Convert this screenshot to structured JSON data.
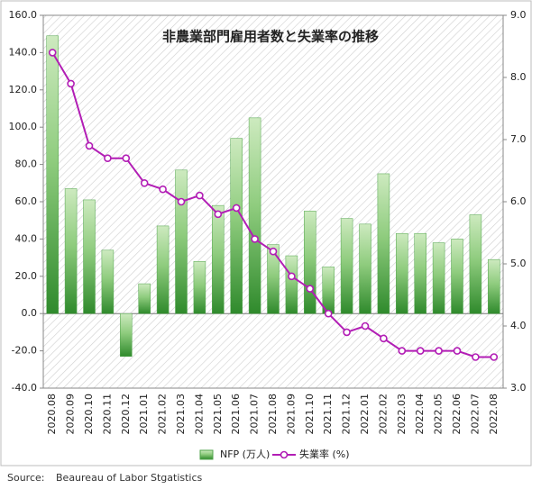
{
  "chart_data": {
    "type": "bar-line",
    "title": "非農業部門雇用者数と失業率の推移",
    "categories": [
      "2020.08",
      "2020.09",
      "2020.10",
      "2020.11",
      "2020.12",
      "2021.01",
      "2021.02",
      "2021.03",
      "2021.04",
      "2021.05",
      "2021.06",
      "2021.07",
      "2021.08",
      "2021.09",
      "2021.10",
      "2021.11",
      "2021.12",
      "2022.01",
      "2022.02",
      "2022.03",
      "2022.04",
      "2022.05",
      "2022.06",
      "2022.07",
      "2022.08"
    ],
    "series": [
      {
        "name": "NFP (万人)",
        "type": "bar",
        "color": "#4fa34a",
        "values": [
          149,
          67,
          61,
          34,
          -23,
          16,
          47,
          77,
          28,
          58,
          94,
          105,
          37,
          31,
          55,
          25,
          51,
          48,
          75,
          43,
          43,
          38,
          40,
          53,
          29
        ]
      },
      {
        "name": "失業率 (%)",
        "type": "line",
        "axis": "y2",
        "color": "#b21db5",
        "values": [
          8.4,
          7.9,
          6.9,
          6.7,
          6.7,
          6.3,
          6.2,
          6.0,
          6.1,
          5.8,
          5.9,
          5.4,
          5.2,
          4.8,
          4.6,
          4.2,
          3.9,
          4.0,
          3.8,
          3.6,
          3.6,
          3.6,
          3.6,
          3.5,
          3.5
        ]
      }
    ],
    "ylim": [
      -40,
      160
    ],
    "yticks": [
      {
        "value": -40,
        "label": "-40.0"
      },
      {
        "value": -20,
        "label": "-20.0"
      },
      {
        "value": 0,
        "label": "0.0"
      },
      {
        "value": 20,
        "label": "20.0"
      },
      {
        "value": 40,
        "label": "40.0"
      },
      {
        "value": 60,
        "label": "60.0"
      },
      {
        "value": 80,
        "label": "80.0"
      },
      {
        "value": 100,
        "label": "100.0"
      },
      {
        "value": 120,
        "label": "120.0"
      },
      {
        "value": 140,
        "label": "140.0"
      },
      {
        "value": 160,
        "label": "160.0"
      }
    ],
    "y2lim": [
      3,
      9
    ],
    "y2ticks": [
      {
        "value": 3,
        "label": "3.0"
      },
      {
        "value": 4,
        "label": "4.0"
      },
      {
        "value": 5,
        "label": "5.0"
      },
      {
        "value": 6,
        "label": "6.0"
      },
      {
        "value": 7,
        "label": "7.0"
      },
      {
        "value": 8,
        "label": "8.0"
      },
      {
        "value": 9,
        "label": "9.0"
      }
    ],
    "source_label": "Source:",
    "source": "Beaureau of Labor Stgatistics"
  }
}
